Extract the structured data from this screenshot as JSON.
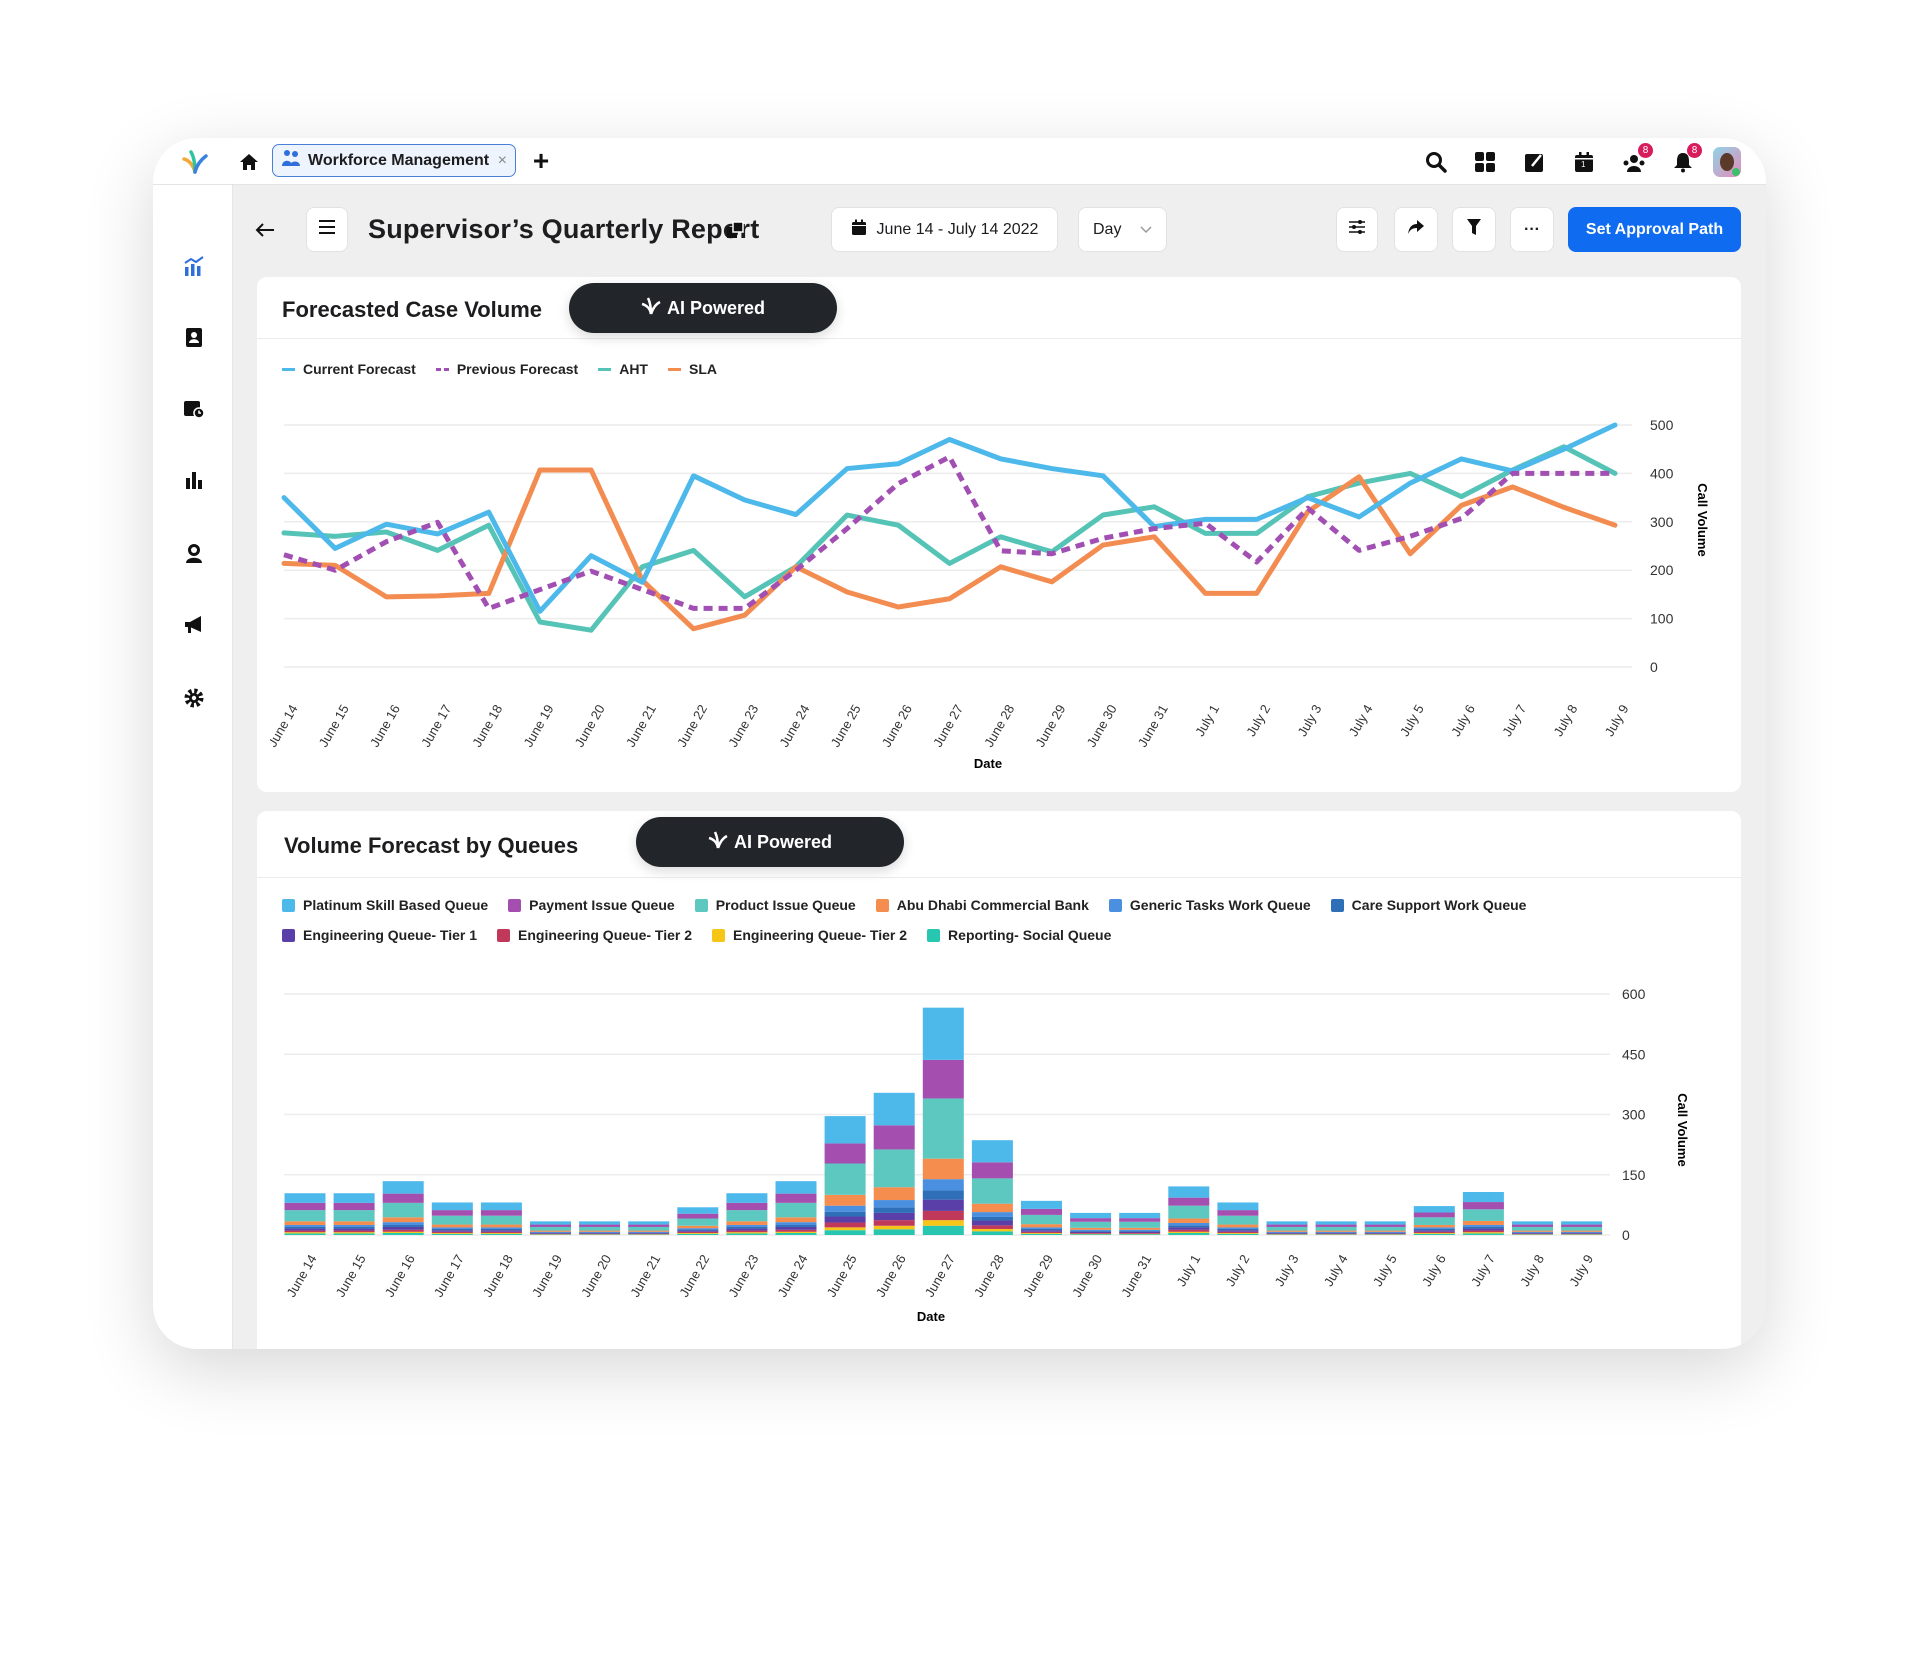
{
  "topbar": {
    "tab_label": "Workforce Management",
    "tab_close": "×",
    "add_tab": "+",
    "notifications_badge": "8",
    "team_badge": "8",
    "calendar_day": "1"
  },
  "header": {
    "title": "Supervisor’s Quarterly Report",
    "date_range": "June 14 - July 14 2022",
    "granularity": "Day",
    "primary_button": "Set Approval Path",
    "more": "···"
  },
  "colors": {
    "accent": "#0f6cf0",
    "pill_bg": "#222529"
  },
  "line_card": {
    "title": "Forecasted Case Volume",
    "ai_badge": "AI Powered",
    "legend": [
      {
        "name": "Current Forecast",
        "color": "#4db8ea",
        "style": "solid"
      },
      {
        "name": "Previous Forecast",
        "color": "#a24fb3",
        "style": "dashed"
      },
      {
        "name": "AHT",
        "color": "#55c3b6",
        "style": "solid"
      },
      {
        "name": "SLA",
        "color": "#f28c50",
        "style": "solid"
      }
    ]
  },
  "bar_card": {
    "title": "Volume Forecast by Queues",
    "ai_badge": "AI Powered"
  },
  "chart_data": [
    {
      "type": "line",
      "xlabel": "Date",
      "ylabel": "Call Volume",
      "ylim": [
        0,
        500
      ],
      "yticks": [
        0,
        100,
        200,
        300,
        400,
        500
      ],
      "grid": true,
      "legend_placement": "top-left",
      "categories": [
        "June 14",
        "June 15",
        "June 16",
        "June 17",
        "June 18",
        "June 19",
        "June 20",
        "June 21",
        "June 22",
        "June 23",
        "June 24",
        "June 25",
        "June 26",
        "June 27",
        "June 28",
        "June 29",
        "June 30",
        "June 31",
        "July 1",
        "July 2",
        "July 3",
        "July 4",
        "July 5",
        "July 6",
        "July 7",
        "July 8",
        "July 9"
      ],
      "series": [
        {
          "name": "Current Forecast",
          "color": "#4db8ea",
          "dashed": false,
          "values": [
            350,
            245,
            295,
            275,
            320,
            115,
            230,
            175,
            395,
            345,
            315,
            410,
            420,
            470,
            430,
            410,
            395,
            290,
            305,
            305,
            350,
            310,
            380,
            430,
            405,
            450,
            500
          ]
        },
        {
          "name": "Previous Forecast",
          "color": "#a24fb3",
          "dashed": true,
          "values": [
            232,
            200,
            259,
            299,
            121,
            160,
            198,
            160,
            121,
            121,
            200,
            286,
            379,
            434,
            240,
            234,
            266,
            286,
            297,
            217,
            328,
            241,
            270,
            307,
            400,
            400,
            400
          ]
        },
        {
          "name": "AHT",
          "color": "#55c3b6",
          "dashed": false,
          "values": [
            277,
            270,
            279,
            241,
            293,
            93,
            76,
            207,
            241,
            145,
            207,
            314,
            293,
            214,
            269,
            238,
            314,
            331,
            276,
            276,
            352,
            380,
            400,
            352,
            407,
            455,
            400
          ]
        },
        {
          "name": "SLA",
          "color": "#f28c50",
          "dashed": false,
          "values": [
            214,
            210,
            145,
            147,
            152,
            407,
            407,
            179,
            79,
            107,
            207,
            155,
            124,
            141,
            207,
            176,
            252,
            269,
            152,
            152,
            321,
            393,
            234,
            334,
            372,
            330,
            293
          ]
        }
      ]
    },
    {
      "type": "bar",
      "stacked": true,
      "xlabel": "Date",
      "ylabel": "Call Volume",
      "ylim": [
        0,
        600
      ],
      "yticks": [
        0,
        150,
        300,
        450,
        600
      ],
      "grid": true,
      "legend_placement": "top-left",
      "categories": [
        "June 14",
        "June 15",
        "June 16",
        "June 17",
        "June 18",
        "June 19",
        "June 20",
        "June 21",
        "June 22",
        "June 23",
        "June 24",
        "June 25",
        "June 26",
        "June 27",
        "June 28",
        "June 29",
        "June 30",
        "June 31",
        "July 1",
        "July 2",
        "July 3",
        "July 4",
        "July 5",
        "July 6",
        "July 7",
        "July 8",
        "July 9"
      ],
      "series": [
        {
          "name": "Platinum Skill Based Queue",
          "color": "#4db8ea",
          "values": [
            24,
            24,
            31,
            19,
            19,
            8,
            8,
            8,
            16,
            24,
            31,
            68,
            81,
            130,
            55,
            20,
            13,
            13,
            28,
            19,
            8,
            8,
            8,
            16,
            25,
            8,
            8
          ]
        },
        {
          "name": "Payment Issue Queue",
          "color": "#a44fb0",
          "values": [
            18,
            18,
            23,
            14,
            14,
            6,
            6,
            6,
            12,
            18,
            23,
            50,
            60,
            96,
            40,
            15,
            9,
            9,
            20,
            14,
            6,
            6,
            6,
            12,
            18,
            6,
            6
          ]
        },
        {
          "name": "Product Issue Queue",
          "color": "#5cc8c0",
          "values": [
            28,
            28,
            36,
            22,
            22,
            9,
            9,
            9,
            18,
            28,
            36,
            78,
            94,
            150,
            63,
            23,
            15,
            15,
            32,
            22,
            9,
            9,
            9,
            19,
            29,
            9,
            9
          ]
        },
        {
          "name": "Abu Dhabi Commercial Bank",
          "color": "#f58d4e",
          "values": [
            9,
            9,
            12,
            7,
            7,
            3,
            3,
            3,
            6,
            9,
            12,
            27,
            32,
            51,
            21,
            8,
            5,
            5,
            11,
            7,
            3,
            3,
            3,
            6,
            10,
            3,
            3
          ]
        },
        {
          "name": "Generic Tasks Work Queue",
          "color": "#4a8fe0",
          "values": [
            5,
            5,
            7,
            4,
            4,
            2,
            2,
            2,
            3,
            5,
            7,
            15,
            18,
            28,
            12,
            4,
            3,
            3,
            6,
            4,
            2,
            2,
            2,
            4,
            5,
            2,
            2
          ]
        },
        {
          "name": "Care Support Work Queue",
          "color": "#2e6fb8",
          "values": [
            4,
            4,
            5,
            3,
            3,
            1,
            1,
            1,
            3,
            4,
            5,
            12,
            14,
            23,
            9,
            3,
            2,
            2,
            5,
            3,
            1,
            1,
            1,
            3,
            4,
            1,
            1
          ]
        },
        {
          "name": "Engineering Queue- Tier 1",
          "color": "#5a3fa8",
          "values": [
            5,
            5,
            7,
            4,
            4,
            2,
            2,
            2,
            3,
            5,
            7,
            15,
            18,
            28,
            12,
            4,
            3,
            3,
            6,
            4,
            2,
            2,
            2,
            4,
            5,
            2,
            2
          ]
        },
        {
          "name": "Engineering Queue- Tier 2",
          "color": "#c0395a",
          "values": [
            4,
            4,
            5,
            3,
            3,
            1,
            1,
            1,
            3,
            4,
            5,
            12,
            14,
            23,
            9,
            3,
            2,
            2,
            5,
            3,
            1,
            1,
            1,
            3,
            4,
            1,
            1
          ]
        },
        {
          "name": "Engineering Queue- Tier 2",
          "color": "#f5c518",
          "values": [
            3,
            3,
            3,
            2,
            2,
            1,
            1,
            1,
            2,
            3,
            3,
            7,
            9,
            14,
            6,
            2,
            1,
            1,
            3,
            2,
            1,
            1,
            1,
            2,
            3,
            1,
            1
          ]
        },
        {
          "name": "Reporting- Social Queue",
          "color": "#26c6b0",
          "values": [
            4,
            4,
            5,
            3,
            3,
            1,
            1,
            1,
            3,
            4,
            5,
            12,
            14,
            23,
            9,
            3,
            2,
            2,
            5,
            3,
            1,
            1,
            1,
            3,
            4,
            1,
            1
          ]
        }
      ]
    }
  ]
}
